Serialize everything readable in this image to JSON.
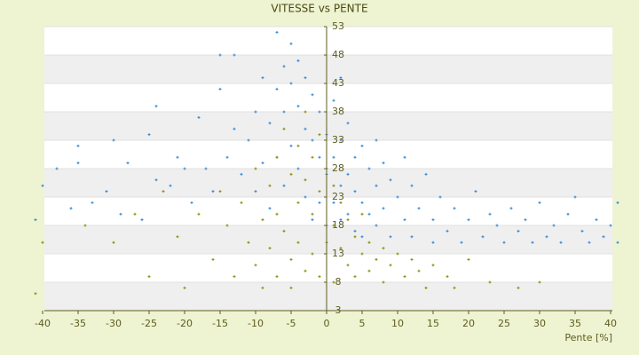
{
  "chart_data": {
    "type": "scatter",
    "title": "VITESSE vs PENTE",
    "x_label": "Pente [%]",
    "xlim": [
      -40,
      40
    ],
    "xticks": [
      -40,
      -35,
      -30,
      -25,
      -20,
      -15,
      -10,
      -5,
      0,
      5,
      10,
      15,
      20,
      25,
      30,
      35,
      40
    ],
    "ylim": [
      3,
      53
    ],
    "yticks": [
      3,
      8,
      13,
      18,
      23,
      28,
      33,
      38,
      43,
      48,
      53
    ],
    "grid": true,
    "series": [
      {
        "color": "#2e86d6",
        "x": [
          -41,
          -40,
          -38,
          -36,
          -35,
          -35,
          -33,
          -31,
          -30,
          -29,
          -28,
          -26,
          -25,
          -24,
          -24,
          -22,
          -21,
          -20,
          -19,
          -18,
          -17,
          -16,
          -15,
          -15,
          -14,
          -13,
          -13,
          -12,
          -11,
          -10,
          -10,
          -9,
          -9,
          -8,
          -8,
          -7,
          -7,
          -7,
          -6,
          -6,
          -6,
          -5,
          -5,
          -5,
          -4,
          -4,
          -4,
          -3,
          -3,
          -3,
          -2,
          -2,
          -2,
          -1,
          -1,
          -1,
          0,
          0,
          0,
          1,
          1,
          1,
          2,
          2,
          2,
          2,
          3,
          3,
          3,
          4,
          4,
          4,
          5,
          5,
          5,
          6,
          6,
          7,
          7,
          7,
          8,
          8,
          9,
          9,
          10,
          11,
          11,
          12,
          12,
          13,
          14,
          15,
          15,
          16,
          17,
          18,
          19,
          20,
          21,
          22,
          23,
          24,
          25,
          26,
          27,
          28,
          29,
          30,
          31,
          32,
          33,
          34,
          35,
          36,
          37,
          38,
          39,
          40,
          41,
          41
        ],
        "y": [
          19,
          25,
          28,
          21,
          29,
          32,
          22,
          24,
          33,
          20,
          29,
          19,
          34,
          26,
          39,
          25,
          30,
          28,
          22,
          37,
          28,
          24,
          48,
          42,
          30,
          48,
          35,
          27,
          33,
          38,
          24,
          44,
          29,
          36,
          21,
          52,
          42,
          30,
          46,
          38,
          25,
          50,
          43,
          32,
          47,
          39,
          28,
          44,
          35,
          23,
          41,
          33,
          19,
          38,
          30,
          22,
          34,
          27,
          18,
          40,
          30,
          22,
          44,
          33,
          25,
          19,
          36,
          27,
          20,
          30,
          24,
          17,
          32,
          22,
          16,
          28,
          20,
          33,
          25,
          18,
          29,
          21,
          26,
          16,
          23,
          30,
          19,
          25,
          16,
          21,
          27,
          19,
          15,
          23,
          17,
          21,
          15,
          19,
          24,
          16,
          20,
          18,
          15,
          21,
          17,
          19,
          15,
          22,
          16,
          18,
          15,
          20,
          23,
          17,
          15,
          19,
          16,
          18,
          22,
          15
        ]
      },
      {
        "color": "#8a8a00",
        "x": [
          -41,
          -40,
          -34,
          -30,
          -27,
          -25,
          -23,
          -21,
          -20,
          -18,
          -16,
          -15,
          -14,
          -13,
          -12,
          -11,
          -10,
          -10,
          -9,
          -9,
          -8,
          -8,
          -7,
          -7,
          -7,
          -6,
          -6,
          -5,
          -5,
          -5,
          -4,
          -4,
          -4,
          -3,
          -3,
          -3,
          -2,
          -2,
          -2,
          -1,
          -1,
          -1,
          0,
          0,
          1,
          1,
          1,
          2,
          2,
          3,
          3,
          4,
          4,
          5,
          5,
          6,
          6,
          7,
          8,
          8,
          9,
          10,
          11,
          12,
          13,
          14,
          15,
          17,
          18,
          20,
          23,
          27,
          30
        ],
        "y": [
          6,
          15,
          18,
          15,
          20,
          9,
          24,
          16,
          7,
          20,
          12,
          24,
          18,
          9,
          22,
          15,
          28,
          11,
          19,
          7,
          25,
          14,
          30,
          20,
          9,
          35,
          17,
          27,
          12,
          7,
          32,
          22,
          15,
          38,
          26,
          10,
          30,
          20,
          13,
          34,
          24,
          9,
          28,
          15,
          25,
          18,
          8,
          22,
          14,
          19,
          11,
          16,
          9,
          20,
          13,
          15,
          10,
          12,
          14,
          8,
          11,
          13,
          9,
          12,
          10,
          7,
          11,
          9,
          7,
          12,
          8,
          7,
          8
        ]
      }
    ]
  }
}
